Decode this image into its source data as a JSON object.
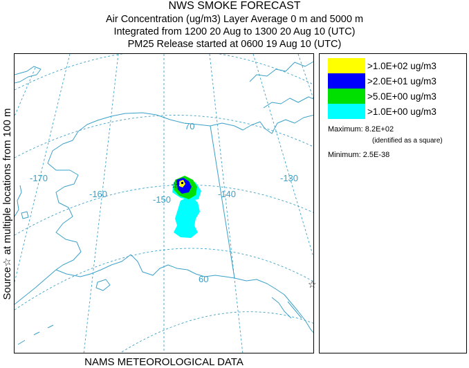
{
  "title": {
    "line1": "NWS SMOKE FORECAST",
    "line2": "Air Concentration (ug/m3) Layer Average     0 m and  5000 m",
    "line3": "Integrated from 1200 20 Aug to 1300 20 Aug 10 (UTC)",
    "line4": "PM25 Release started at 0600 19 Aug 10 (UTC)"
  },
  "side_label": "Source☆   at multiple locations   from   100 m",
  "footer": "NAMS METEOROLOGICAL DATA",
  "map": {
    "lon_labels": [
      "-170",
      "-160",
      "-150",
      "-140",
      "-130"
    ],
    "lat_labels": [
      "70",
      "60"
    ]
  },
  "legend": {
    "entries": [
      {
        "label": ">1.0E+02 ug/m3",
        "color": "#ffff00"
      },
      {
        "label": ">2.0E+01 ug/m3",
        "color": "#0000ff"
      },
      {
        "label": ">5.0E+00 ug/m3",
        "color": "#00e000"
      },
      {
        "label": ">1.0E+00 ug/m3",
        "color": "#00ffff"
      }
    ],
    "maximum": "Maximum: 8.2E+02",
    "maximum_note": "(identified as a square)",
    "minimum": "Minimum: 2.5E-38"
  },
  "colors": {
    "coastline": "#3aa0c8",
    "graticule": "#3aa0c8"
  }
}
